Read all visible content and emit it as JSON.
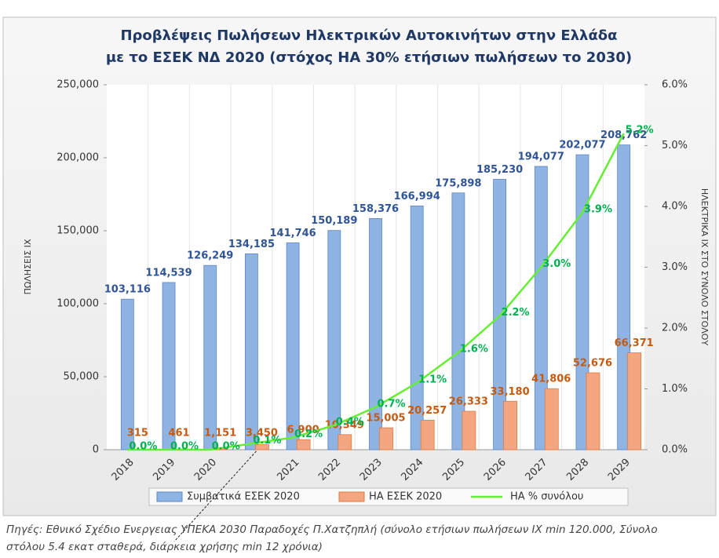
{
  "chart_data": {
    "type": "bar",
    "title": [
      "Προβλέψεις  Πωλήσεων  Ηλεκτρικών  Αυτοκινήτων στην Ελλάδα",
      "με το ΕΣΕΚ ΝΔ 2020 (στόχος ΗΑ 30% ετήσιων πωλήσεων το 2030)"
    ],
    "categories": [
      "2018",
      "2019",
      "2020",
      null,
      "2021",
      "2022",
      "2023",
      "2024",
      "2025",
      "2026",
      "2027",
      "2028",
      "2029"
    ],
    "series": [
      {
        "name": "Συμβατικά ΕΣΕΚ 2020",
        "color": "#8fb4e3",
        "type": "bar",
        "values": [
          103116,
          114539,
          126249,
          134185,
          141746,
          150189,
          158376,
          166994,
          175898,
          185230,
          194077,
          202077,
          208762
        ],
        "value_labels": [
          "103,116",
          "114,539",
          "126,249",
          "134,185",
          "141,746",
          "150,189",
          "158,376",
          "166,994",
          "175,898",
          "185,230",
          "194,077",
          "202,077",
          "208,762"
        ]
      },
      {
        "name": "ΗΑ ΕΣΕΚ 2020",
        "color": "#f4a582",
        "type": "bar",
        "values": [
          315,
          461,
          1151,
          3450,
          6900,
          10349,
          15005,
          20257,
          26333,
          33180,
          41806,
          52676,
          66371
        ],
        "value_labels": [
          "315",
          "461",
          "1,151",
          "3,450",
          "6,900",
          "10,349",
          "15,005",
          "20,257",
          "26,333",
          "33,180",
          "41,806",
          "52,676",
          "66,371"
        ]
      },
      {
        "name": "ΗΑ % συνόλου",
        "color": "#66ee33",
        "type": "line",
        "axis": "y2",
        "values": [
          0.0,
          0.0,
          0.0,
          0.1,
          0.2,
          0.4,
          0.7,
          1.1,
          1.6,
          2.2,
          3.0,
          3.9,
          5.2
        ],
        "value_labels": [
          "0.0%",
          "0.0%",
          "0.0%",
          "0.1%",
          "0.2%",
          "0.4%",
          "0.7%",
          "1.1%",
          "1.6%",
          "2.2%",
          "3.0%",
          "3.9%",
          "5.2%"
        ]
      }
    ],
    "ylim": [
      0,
      250000
    ],
    "yticks": [
      0,
      {
        "value": 50000,
        "label": "50,000"
      },
      {
        "value": 100000,
        "label": "100,000"
      },
      {
        "value": 150000,
        "label": "150,000"
      },
      {
        "value": 200000,
        "label": "200,000"
      },
      {
        "value": 250000,
        "label": "250,000"
      }
    ],
    "y2lim": [
      0,
      6
    ],
    "y2ticks": [
      {
        "value": 0,
        "label": "0.0%"
      },
      {
        "value": 1,
        "label": "1.0%"
      },
      {
        "value": 2,
        "label": "2.0%"
      },
      {
        "value": 3,
        "label": "3.0%"
      },
      {
        "value": 4,
        "label": "4.0%"
      },
      {
        "value": 5,
        "label": "5.0%"
      },
      {
        "value": 6,
        "label": "6.0%"
      }
    ],
    "ylabel": "ΠΩΛΗΣΕΙΣ ΙΧ",
    "y2label": "ΗΛΕΚΤΡΙΚΑ ΙΧ ΣΤΟ ΣΥΝΟΛΟ ΣΤΟΛΟΥ",
    "legend": "bottom",
    "source": [
      "Πηγές: Εθνικό Σχέδιο Ενεργειας ΥΠΕΚΑ 2030 Παραδοχές Π.Χατζηπλή (σύνολο ετήσιων πωλήσεων ΙΧ min 120.000, Σύνολο",
      "στόλου 5.4 εκατ σταθερά, διάρκεια χρήσης min 12 χρόνια)"
    ]
  }
}
